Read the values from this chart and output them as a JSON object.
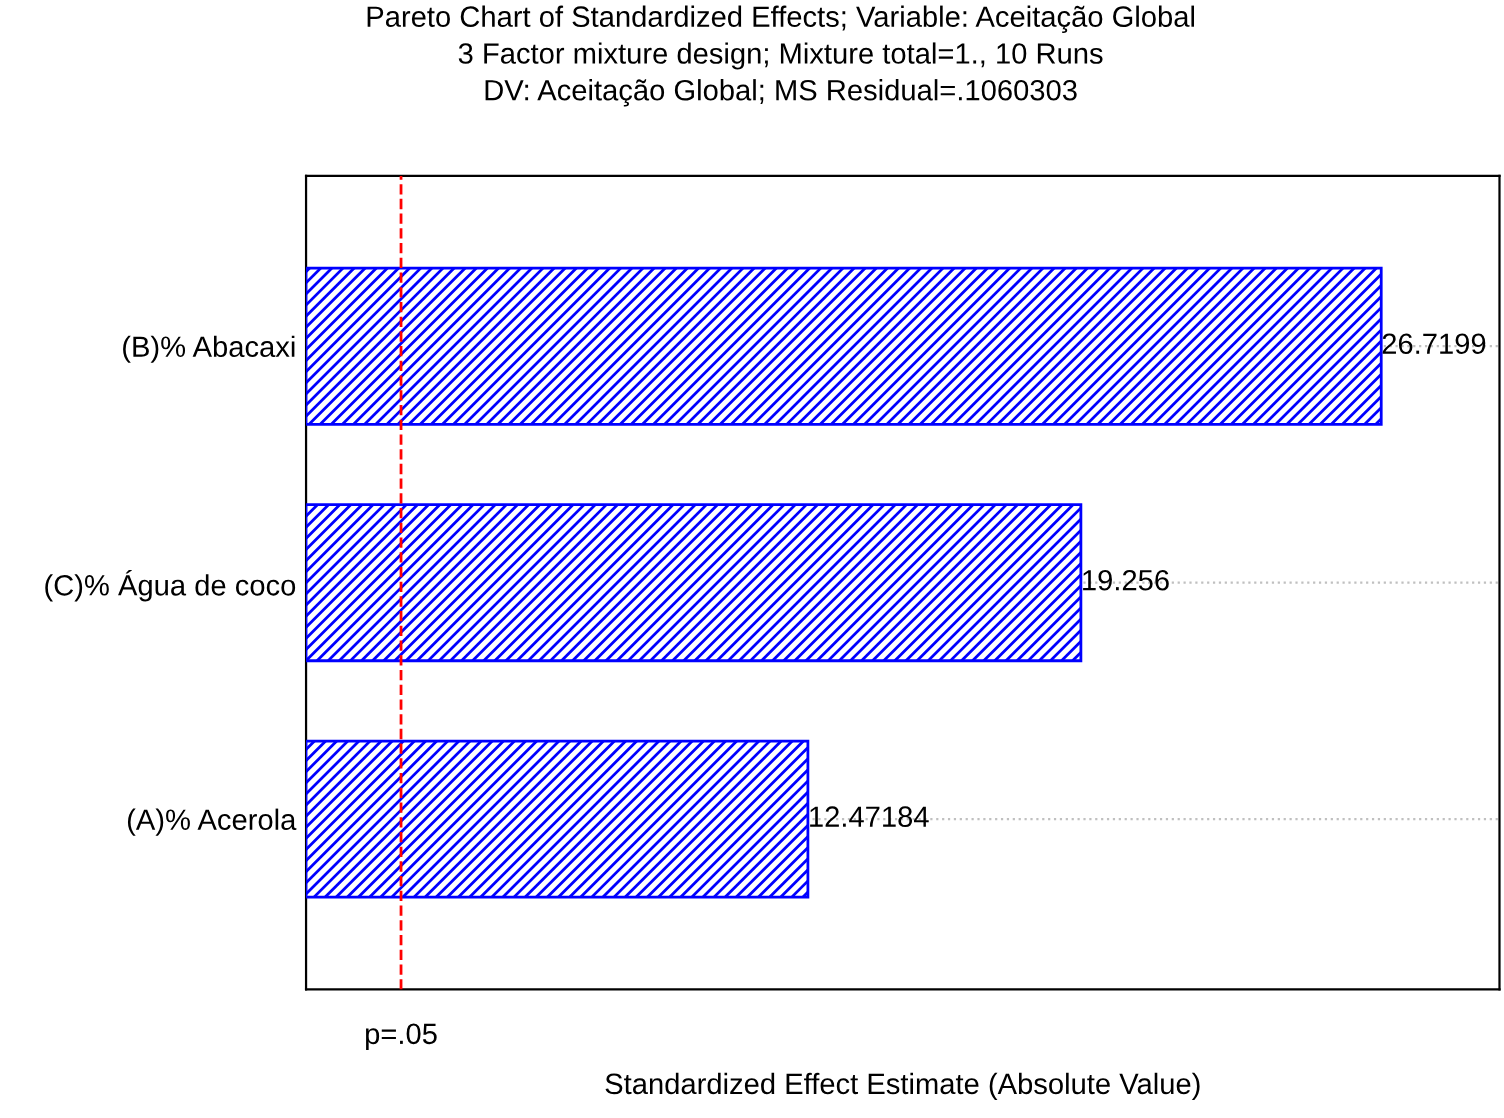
{
  "chart_data": {
    "type": "bar",
    "orientation": "horizontal",
    "title": "Pareto Chart of Standardized Effects; Variable: Aceitação Global\n3 Factor mixture design; Mixture total=1., 10 Runs\nDV: Aceitação Global; MS Residual=.1060303",
    "xlabel": "Standardized Effect Estimate (Absolute Value)",
    "categories": [
      "(B)% Abacaxi",
      "(C)% Água de coco",
      "(A)% Acerola"
    ],
    "values": [
      26.7199,
      19.256,
      12.47184
    ],
    "color": "#0000ff",
    "data_labels": true,
    "grid": "y",
    "ref_lines": [
      {
        "axis": "x",
        "value": 2.36,
        "label": "p=.05",
        "color": "#ff0000",
        "line_style": "dashed"
      }
    ]
  }
}
